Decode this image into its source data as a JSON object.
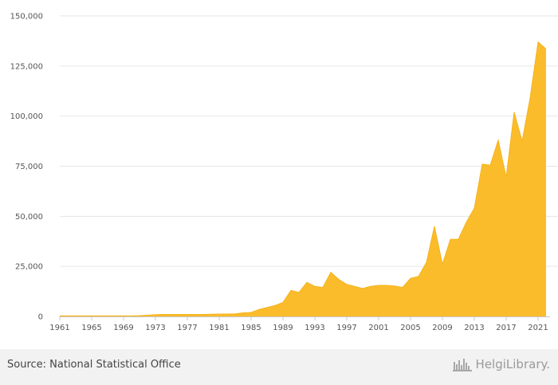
{
  "chart_data": {
    "type": "area",
    "color": "#fbbc2c",
    "title": "",
    "xlabel": "",
    "ylabel": "",
    "ylim": [
      0,
      150000
    ],
    "yticks": [
      0,
      25000,
      50000,
      75000,
      100000,
      125000,
      150000
    ],
    "ytick_labels": [
      "0",
      "25,000",
      "50,000",
      "75,000",
      "100,000",
      "125,000",
      "150,000"
    ],
    "xticks": [
      "1961",
      "1965",
      "1969",
      "1973",
      "1977",
      "1981",
      "1985",
      "1989",
      "1993",
      "1997",
      "2001",
      "2005",
      "2009",
      "2013",
      "2017",
      "2021"
    ],
    "grid": true,
    "x": [
      1961,
      1962,
      1963,
      1964,
      1965,
      1966,
      1967,
      1968,
      1969,
      1970,
      1971,
      1972,
      1973,
      1974,
      1975,
      1976,
      1977,
      1978,
      1979,
      1980,
      1981,
      1982,
      1983,
      1984,
      1985,
      1986,
      1987,
      1988,
      1989,
      1990,
      1991,
      1992,
      1993,
      1994,
      1995,
      1996,
      1997,
      1998,
      1999,
      2000,
      2001,
      2002,
      2003,
      2004,
      2005,
      2006,
      2007,
      2008,
      2009,
      2010,
      2011,
      2012,
      2013,
      2014,
      2015,
      2016,
      2017,
      2018,
      2019,
      2020,
      2021,
      2022
    ],
    "values": [
      300,
      300,
      300,
      300,
      300,
      300,
      300,
      300,
      300,
      300,
      400,
      600,
      900,
      1000,
      1000,
      1000,
      1000,
      1000,
      1000,
      1100,
      1200,
      1200,
      1300,
      1800,
      2000,
      3500,
      4500,
      5500,
      7000,
      13000,
      12000,
      17000,
      15000,
      14500,
      22000,
      18500,
      16000,
      15000,
      14000,
      15000,
      15500,
      15500,
      15200,
      14500,
      19000,
      20000,
      27000,
      45000,
      26000,
      38500,
      38500,
      47000,
      54000,
      76000,
      75500,
      88000,
      69500,
      102000,
      87500,
      109000,
      137000,
      133500
    ]
  },
  "footer": {
    "source": "Source: National Statistical Office",
    "brand": "HelgiLibrary."
  }
}
